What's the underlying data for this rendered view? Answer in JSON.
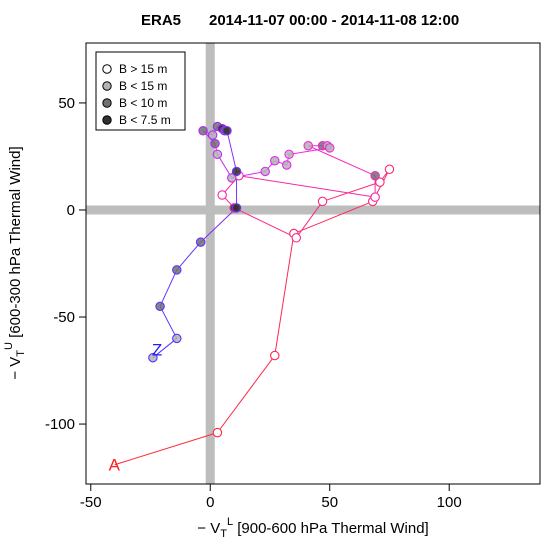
{
  "chart_data": {
    "type": "line",
    "title": "ERA5",
    "subtitle": "2014-11-07 00:00 - 2014-11-08 12:00",
    "xlabel_prefix": "− V",
    "xlabel_sub": "T",
    "xlabel_sup": "L",
    "xlabel_rest": " [900-600 hPa Thermal Wind]",
    "ylabel_prefix": "− V",
    "ylabel_sub": "T",
    "ylabel_sup": "U",
    "ylabel_rest": " [600-300 hPa Thermal Wind]",
    "xlim": [
      -52,
      138
    ],
    "ylim": [
      -128,
      78
    ],
    "xticks": [
      -50,
      0,
      50,
      100
    ],
    "yticks": [
      -100,
      -50,
      0,
      50
    ],
    "reference_lines": {
      "x": 0,
      "y": 0,
      "color": "#bdbdbd"
    },
    "legend": {
      "position": "top-left",
      "entries": [
        {
          "label": "B > 15 m",
          "fill": "#ffffff"
        },
        {
          "label": "B < 15 m",
          "fill": "#b3b3b3"
        },
        {
          "label": "B < 10 m",
          "fill": "#707070"
        },
        {
          "label": "B < 7.5 m",
          "fill": "#303030"
        }
      ]
    },
    "start_label": "A",
    "start_label_color": "#ff2020",
    "end_label": "Z",
    "end_label_color": "#2020ff",
    "points": [
      {
        "x": -40,
        "y": -119,
        "cls": "none"
      },
      {
        "x": 3,
        "y": -104,
        "cls": "gt15"
      },
      {
        "x": 27,
        "y": -68,
        "cls": "gt15"
      },
      {
        "x": 35,
        "y": -11,
        "cls": "gt15"
      },
      {
        "x": 68,
        "y": 4,
        "cls": "gt15"
      },
      {
        "x": 75,
        "y": 19,
        "cls": "gt15"
      },
      {
        "x": 71,
        "y": 13,
        "cls": "gt15"
      },
      {
        "x": 47,
        "y": 4,
        "cls": "gt15"
      },
      {
        "x": 36,
        "y": -13,
        "cls": "gt15"
      },
      {
        "x": 10,
        "y": 1,
        "cls": "lt75"
      },
      {
        "x": 5,
        "y": 7,
        "cls": "gt15"
      },
      {
        "x": 12,
        "y": 16,
        "cls": "gt15"
      },
      {
        "x": 69,
        "y": 6,
        "cls": "gt15"
      },
      {
        "x": 69,
        "y": 16,
        "cls": "lt10"
      },
      {
        "x": 41,
        "y": 30,
        "cls": "lt15"
      },
      {
        "x": 47,
        "y": 30,
        "cls": "lt10"
      },
      {
        "x": 49,
        "y": 30,
        "cls": "lt15"
      },
      {
        "x": 50,
        "y": 29,
        "cls": "lt15"
      },
      {
        "x": 33,
        "y": 26,
        "cls": "lt15"
      },
      {
        "x": 32,
        "y": 21,
        "cls": "lt15"
      },
      {
        "x": 27,
        "y": 23,
        "cls": "lt15"
      },
      {
        "x": 23,
        "y": 18,
        "cls": "lt15"
      },
      {
        "x": 9,
        "y": 15,
        "cls": "lt15"
      },
      {
        "x": 3,
        "y": 26,
        "cls": "lt15"
      },
      {
        "x": 2,
        "y": 31,
        "cls": "lt10"
      },
      {
        "x": -3,
        "y": 37,
        "cls": "lt10"
      },
      {
        "x": 1,
        "y": 35,
        "cls": "lt15"
      },
      {
        "x": 3,
        "y": 39,
        "cls": "lt10"
      },
      {
        "x": 5,
        "y": 38,
        "cls": "lt75"
      },
      {
        "x": 6,
        "y": 37,
        "cls": "lt10"
      },
      {
        "x": 7,
        "y": 37,
        "cls": "lt75"
      },
      {
        "x": 11,
        "y": 18,
        "cls": "lt75"
      },
      {
        "x": 11,
        "y": 1,
        "cls": "lt75"
      },
      {
        "x": -4,
        "y": -15,
        "cls": "lt10"
      },
      {
        "x": -14,
        "y": -28,
        "cls": "lt10"
      },
      {
        "x": -21,
        "y": -45,
        "cls": "lt10"
      },
      {
        "x": -14,
        "y": -60,
        "cls": "lt15"
      },
      {
        "x": -24,
        "y": -69,
        "cls": "lt15"
      }
    ]
  }
}
